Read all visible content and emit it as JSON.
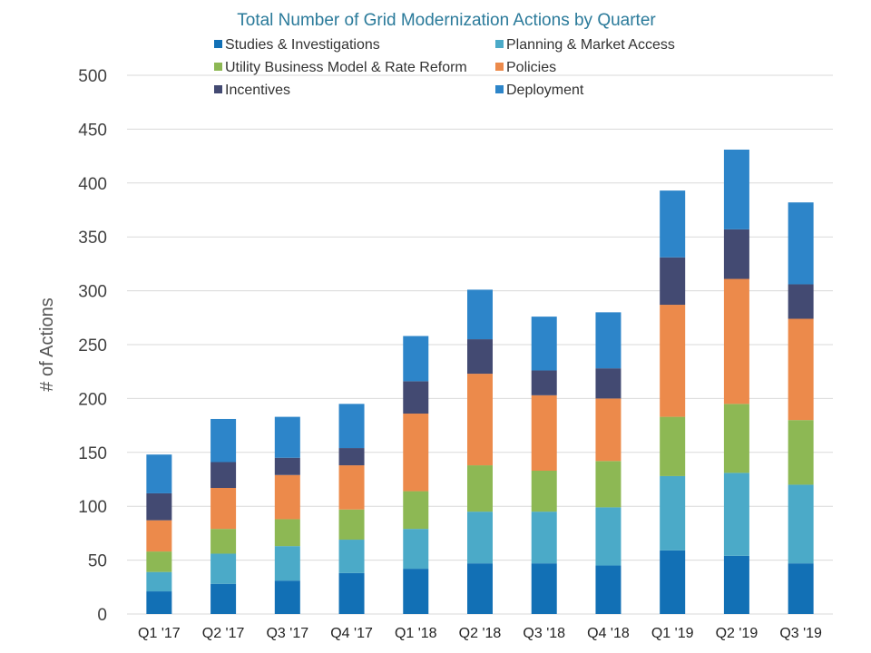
{
  "chart_data": {
    "type": "bar",
    "stacked": true,
    "title": "Total Number of Grid Modernization Actions by Quarter",
    "xlabel": "",
    "ylabel": "# of Actions",
    "ylim": [
      0,
      500
    ],
    "yticks": [
      0,
      50,
      100,
      150,
      200,
      250,
      300,
      350,
      400,
      450,
      500
    ],
    "grid": true,
    "legend_position": "top",
    "categories": [
      "Q1 '17",
      "Q2 '17",
      "Q3 '17",
      "Q4 '17",
      "Q1 '18",
      "Q2 '18",
      "Q3 '18",
      "Q4 '18",
      "Q1 '19",
      "Q2 '19",
      "Q3 '19"
    ],
    "series": [
      {
        "name": "Studies & Investigations",
        "color": "#1270b5",
        "values": [
          21,
          28,
          31,
          38,
          42,
          47,
          47,
          45,
          59,
          54,
          47
        ]
      },
      {
        "name": "Planning & Market Access",
        "color": "#4baac8",
        "values": [
          18,
          28,
          32,
          31,
          37,
          48,
          48,
          54,
          69,
          77,
          73
        ]
      },
      {
        "name": "Utility Business Model & Rate Reform",
        "color": "#8db854",
        "values": [
          19,
          23,
          25,
          28,
          35,
          43,
          38,
          43,
          55,
          64,
          60
        ]
      },
      {
        "name": "Policies",
        "color": "#ec8a4b",
        "values": [
          29,
          38,
          41,
          41,
          72,
          85,
          70,
          58,
          104,
          116,
          94
        ]
      },
      {
        "name": "Incentives",
        "color": "#434a72",
        "values": [
          25,
          24,
          16,
          16,
          30,
          32,
          23,
          28,
          44,
          46,
          32
        ]
      },
      {
        "name": "Deployment",
        "color": "#2d85c9",
        "values": [
          36,
          40,
          38,
          41,
          42,
          46,
          50,
          52,
          62,
          74,
          76
        ]
      }
    ]
  }
}
